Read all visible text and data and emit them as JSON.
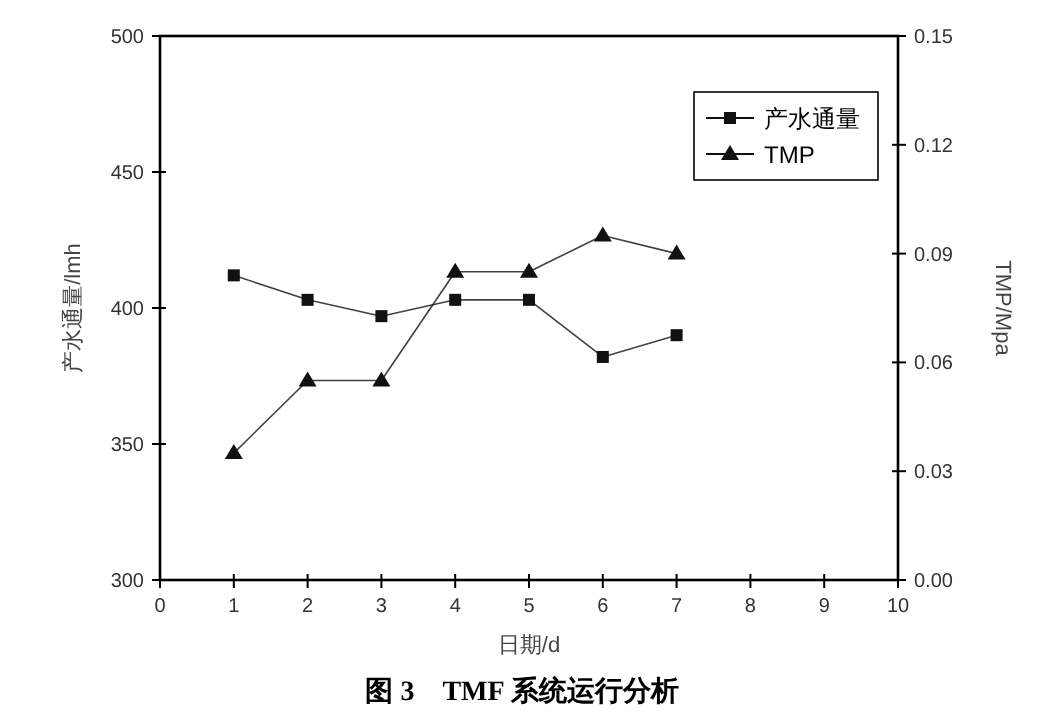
{
  "chart_data": {
    "type": "line",
    "title": "图 3　TMF 系统运行分析",
    "xlabel": "日期/d",
    "ylabel": "产水通量/lmh",
    "y2label": "TMP/Mpa",
    "x": [
      1,
      2,
      3,
      4,
      5,
      6,
      7
    ],
    "series": [
      {
        "name": "产水通量",
        "color": "#111111",
        "marker": "square",
        "values": [
          412,
          403,
          397,
          403,
          403,
          382,
          390
        ]
      },
      {
        "name": "TMP",
        "color": "#111111",
        "marker": "triangle",
        "axis": "y2",
        "values": [
          0.035,
          0.055,
          0.055,
          0.085,
          0.085,
          0.095,
          0.09
        ]
      }
    ],
    "xlim": [
      0,
      10
    ],
    "xticks": [
      0,
      1,
      2,
      3,
      4,
      5,
      6,
      7,
      8,
      9,
      10
    ],
    "ylim": [
      300,
      500
    ],
    "yticks": [
      300,
      350,
      400,
      450,
      500
    ],
    "y2lim": [
      0,
      0.15
    ],
    "y2ticks": [
      {
        "value": 0,
        "label": "0.00"
      },
      {
        "value": 0.03,
        "label": "0.03"
      },
      {
        "value": 0.06,
        "label": "0.06"
      },
      {
        "value": 0.09,
        "label": "0.09"
      },
      {
        "value": 0.12,
        "label": "0.12"
      },
      {
        "value": 0.15,
        "label": "0.15"
      }
    ],
    "legend": "top right",
    "grid": false,
    "line_style": "solid"
  }
}
